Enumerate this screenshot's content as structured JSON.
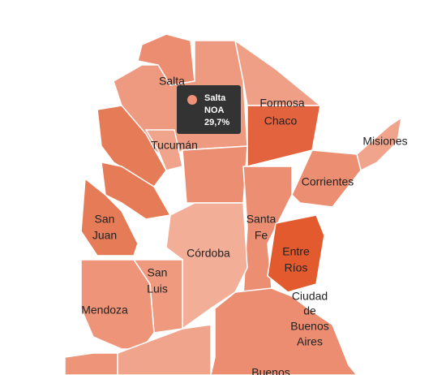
{
  "map": {
    "labels": [
      [
        "Salta"
      ],
      [
        "Formosa",
        "Chaco"
      ],
      [
        "Misiones"
      ],
      [
        "Tucumán"
      ],
      [
        "Corrientes"
      ],
      [
        "San",
        "Juan"
      ],
      [
        "Santa",
        "Fe"
      ],
      [
        "Córdoba"
      ],
      [
        "Entre",
        "Ríos"
      ],
      [
        "San",
        "Luis"
      ],
      [
        "Mendoza"
      ],
      [
        "Ciudad",
        "de",
        "Buenos",
        "Aires"
      ],
      [
        "Buenos"
      ]
    ],
    "tooltip": {
      "name": "Salta",
      "region": "NOA",
      "value": "29,7%"
    }
  }
}
